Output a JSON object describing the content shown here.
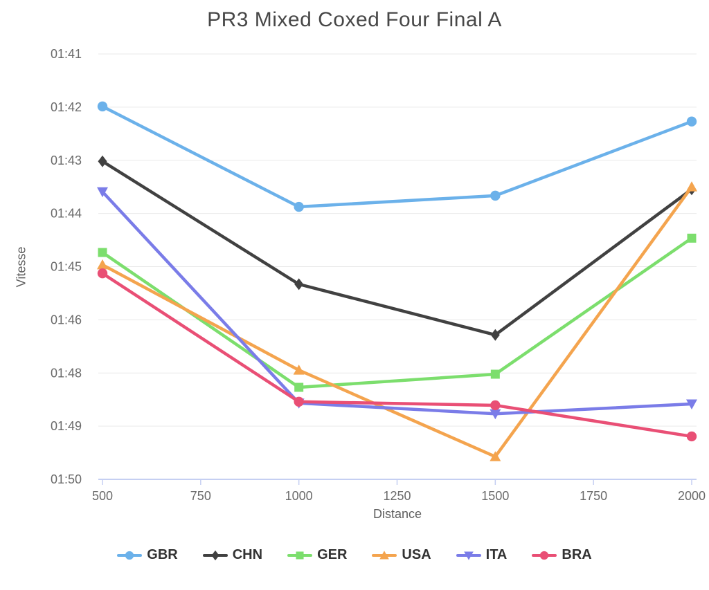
{
  "chart_data": {
    "type": "line",
    "title": "PR3 Mixed Coxed Four Final A",
    "xlabel": "Distance",
    "ylabel": "Vitesse",
    "x": [
      500,
      1000,
      1500,
      2000
    ],
    "x_ticks": [
      500,
      750,
      1000,
      1250,
      1500,
      1750,
      2000
    ],
    "y_tick_labels": [
      "01:41",
      "01:42",
      "01:43",
      "01:44",
      "01:45",
      "01:46",
      "01:48",
      "01:49",
      "01:50"
    ],
    "y_axis": {
      "note": "axis linear in boat speed; ticks labeled as 500m split time (mm:ss) rounded to seconds, fastest at top",
      "top_seconds": 101,
      "bottom_seconds": 110
    },
    "grid": "horizontal-only",
    "legend_position": "bottom",
    "series": [
      {
        "name": "GBR",
        "color": "#6bb1ea",
        "marker": "circle",
        "split_seconds": [
          102.03,
          104.06,
          103.83,
          102.33
        ],
        "split_display": [
          "01:42.0",
          "01:44.1",
          "01:43.8",
          "01:42.3"
        ]
      },
      {
        "name": "CHN",
        "color": "#414141",
        "marker": "diamond",
        "split_seconds": [
          103.13,
          105.68,
          106.77,
          103.7
        ],
        "split_display": [
          "01:43.1",
          "01:45.7",
          "01:46.8",
          "01:43.7"
        ]
      },
      {
        "name": "GER",
        "color": "#7cde6d",
        "marker": "square",
        "split_seconds": [
          105.01,
          107.92,
          107.63,
          104.71
        ],
        "split_display": [
          "01:45.0",
          "01:47.9",
          "01:47.6",
          "01:44.7"
        ]
      },
      {
        "name": "USA",
        "color": "#f4a44e",
        "marker": "triangle-up",
        "split_seconds": [
          105.27,
          107.54,
          109.48,
          103.65
        ],
        "split_display": [
          "01:45.3",
          "01:47.5",
          "01:49.5",
          "01:43.6"
        ]
      },
      {
        "name": "ITA",
        "color": "#7a7ce8",
        "marker": "triangle-down",
        "split_seconds": [
          103.75,
          108.27,
          108.51,
          108.29
        ],
        "split_display": [
          "01:43.8",
          "01:48.3",
          "01:48.5",
          "01:48.3"
        ]
      },
      {
        "name": "BRA",
        "color": "#e94f75",
        "marker": "circle",
        "split_seconds": [
          105.45,
          108.24,
          108.32,
          109.02
        ],
        "split_display": [
          "01:45.4",
          "01:48.2",
          "01:48.3",
          "01:49.0"
        ]
      }
    ],
    "colors": {
      "grid": "#e9e9e9",
      "axis": "#c5cff2",
      "tick_text": "#6a6a6a",
      "title_text": "#474747",
      "axis_title_text": "#5e5e5e",
      "legend_text": "#333333",
      "background": "#ffffff"
    }
  }
}
